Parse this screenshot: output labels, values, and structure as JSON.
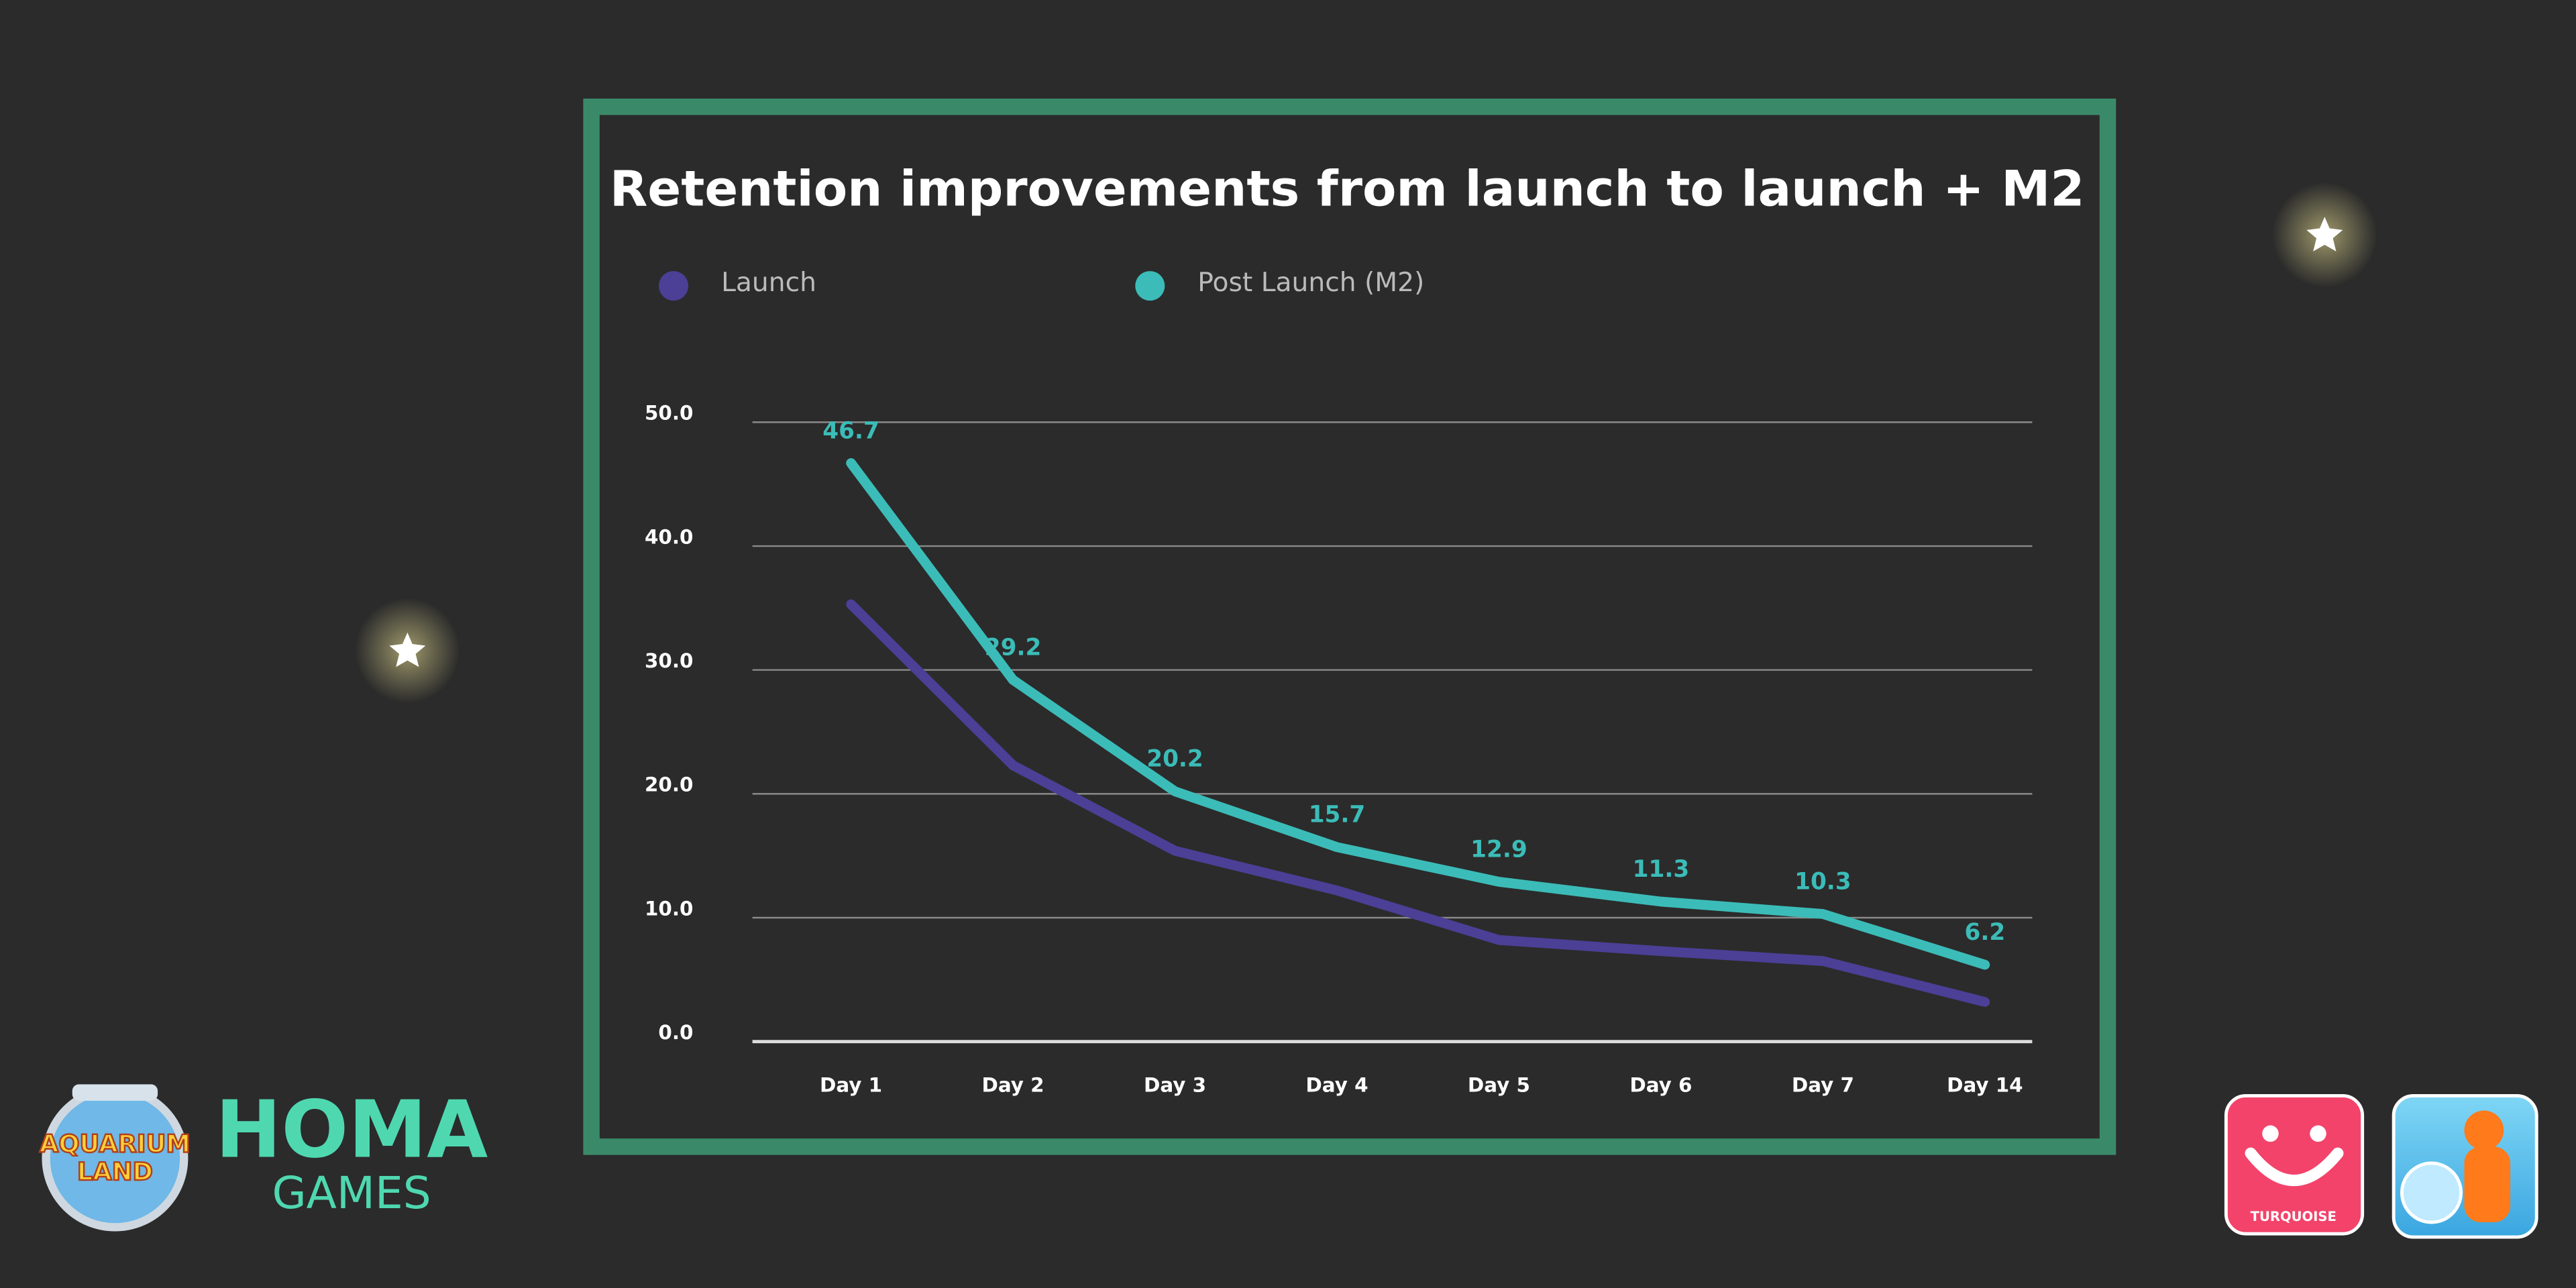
{
  "chart_data": {
    "type": "line",
    "title": "Retention improvements from launch to launch + M2",
    "categories": [
      "Day 1",
      "Day 2",
      "Day 3",
      "Day 4",
      "Day 5",
      "Day 6",
      "Day 7",
      "Day 14"
    ],
    "series": [
      {
        "name": "Launch",
        "color": "#4b3f96",
        "values": [
          35.3,
          22.3,
          15.4,
          12.2,
          8.2,
          7.3,
          6.5,
          3.2
        ]
      },
      {
        "name": "Post Launch (M2)",
        "color": "#3bbcb8",
        "values": [
          46.7,
          29.2,
          20.2,
          15.7,
          12.9,
          11.3,
          10.3,
          6.2
        ],
        "data_labels": true
      }
    ],
    "ylim": [
      0,
      50
    ],
    "yticks": [
      {
        "value": 0,
        "label": "0.0"
      },
      {
        "value": 10,
        "label": "10.0"
      },
      {
        "value": 20,
        "label": "20.0"
      },
      {
        "value": 30,
        "label": "30.0"
      },
      {
        "value": 40,
        "label": "40.0"
      },
      {
        "value": 50,
        "label": "50.0"
      }
    ],
    "grid": true,
    "legend": "top-left"
  },
  "branding": {
    "game_logo": [
      "AQUARIUM",
      "LAND"
    ],
    "company": [
      "HOMA",
      "GAMES"
    ],
    "app_icon_label": "TURQUOISE"
  }
}
